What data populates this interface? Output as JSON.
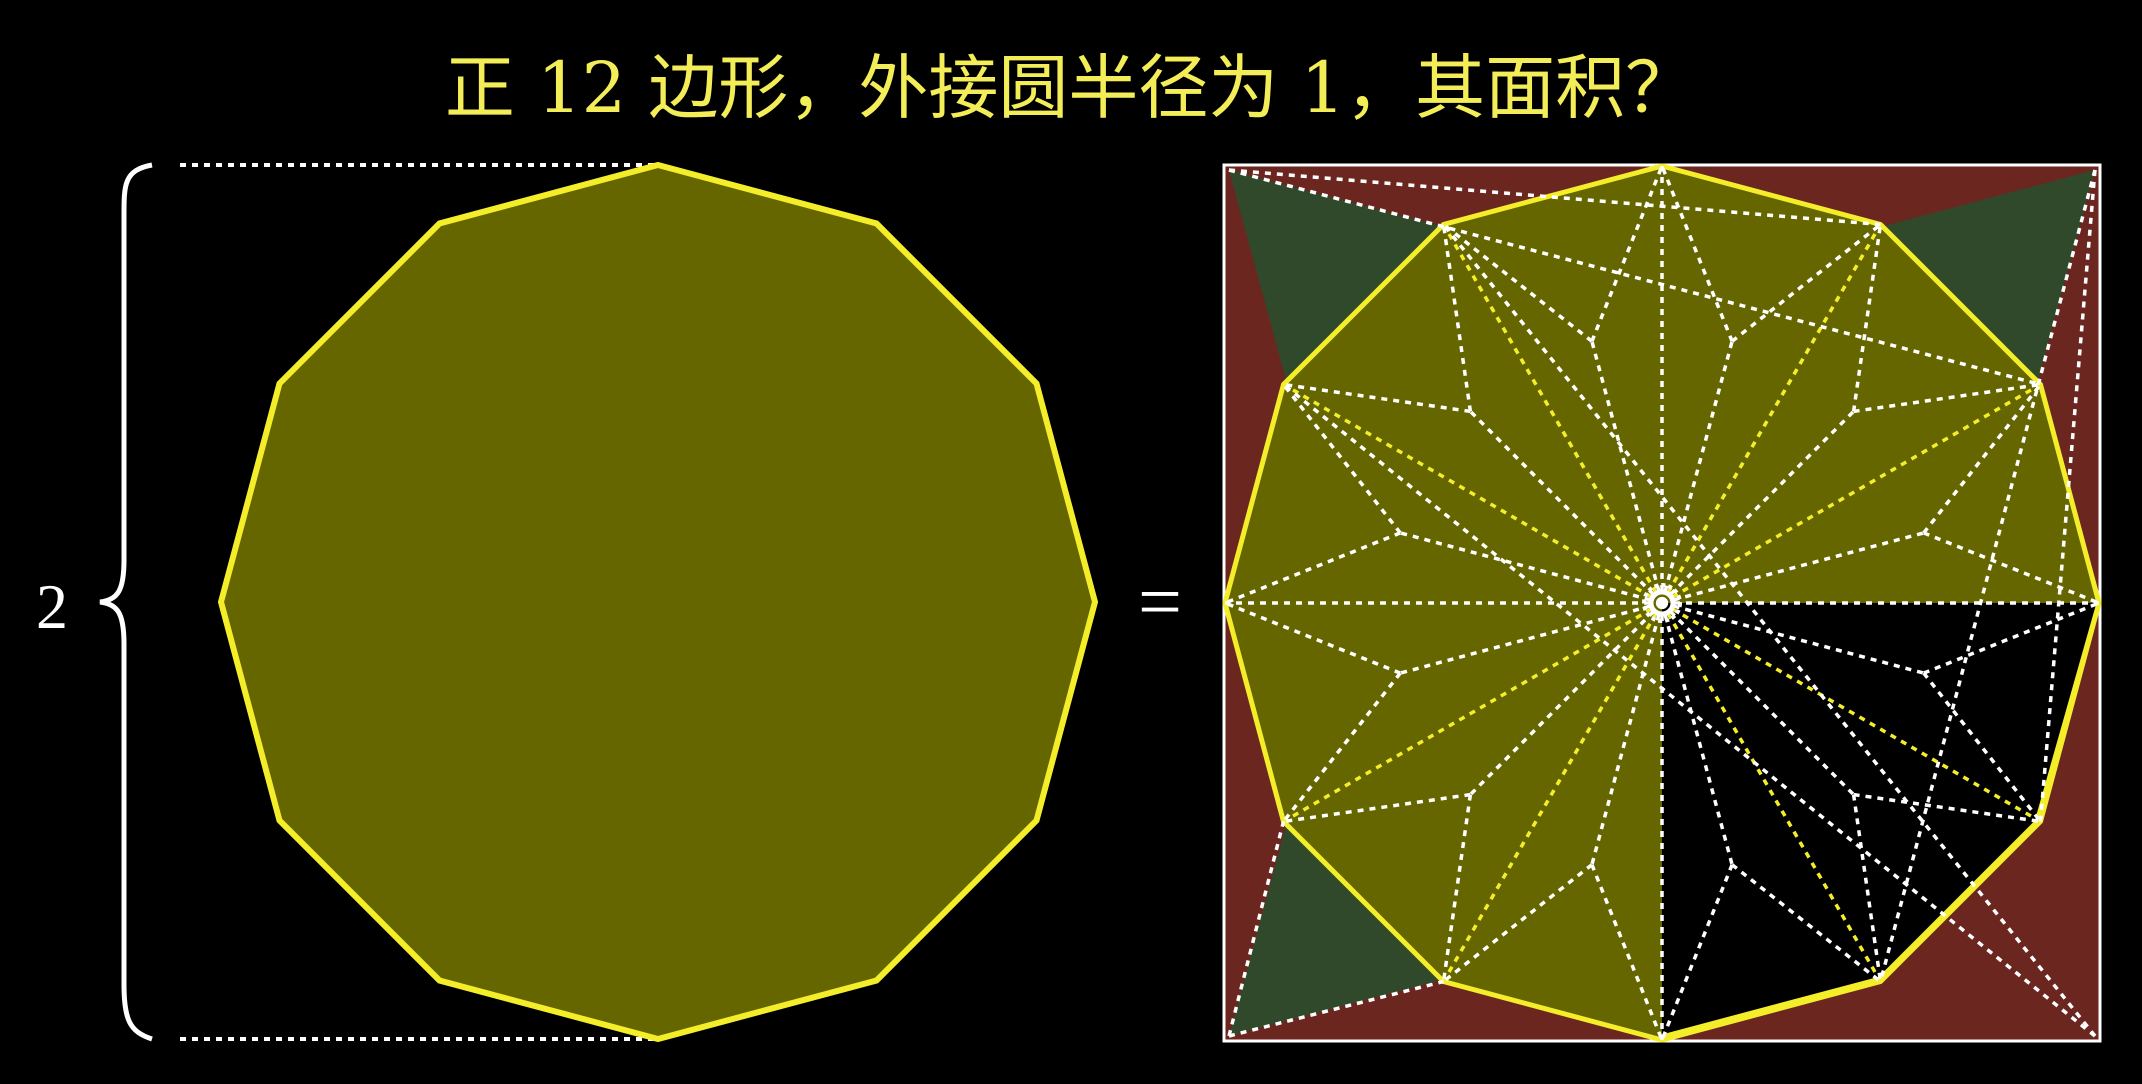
{
  "title": "正 12 边形，外接圆半径为 1，其面积？",
  "brace_label": "2",
  "equals_sign": "=",
  "polygon": {
    "sides": 12,
    "circumradius": 1
  },
  "colors": {
    "background": "#000000",
    "title": "#f3ee58",
    "polygon_fill": "#666600",
    "polygon_stroke": "#f4ee2a",
    "annotation": "#ffffff",
    "corner_red": "#6b2620",
    "corner_green": "#30492a",
    "dashed_white": "#ffffff",
    "dashed_yellow": "#f4ee2a"
  }
}
